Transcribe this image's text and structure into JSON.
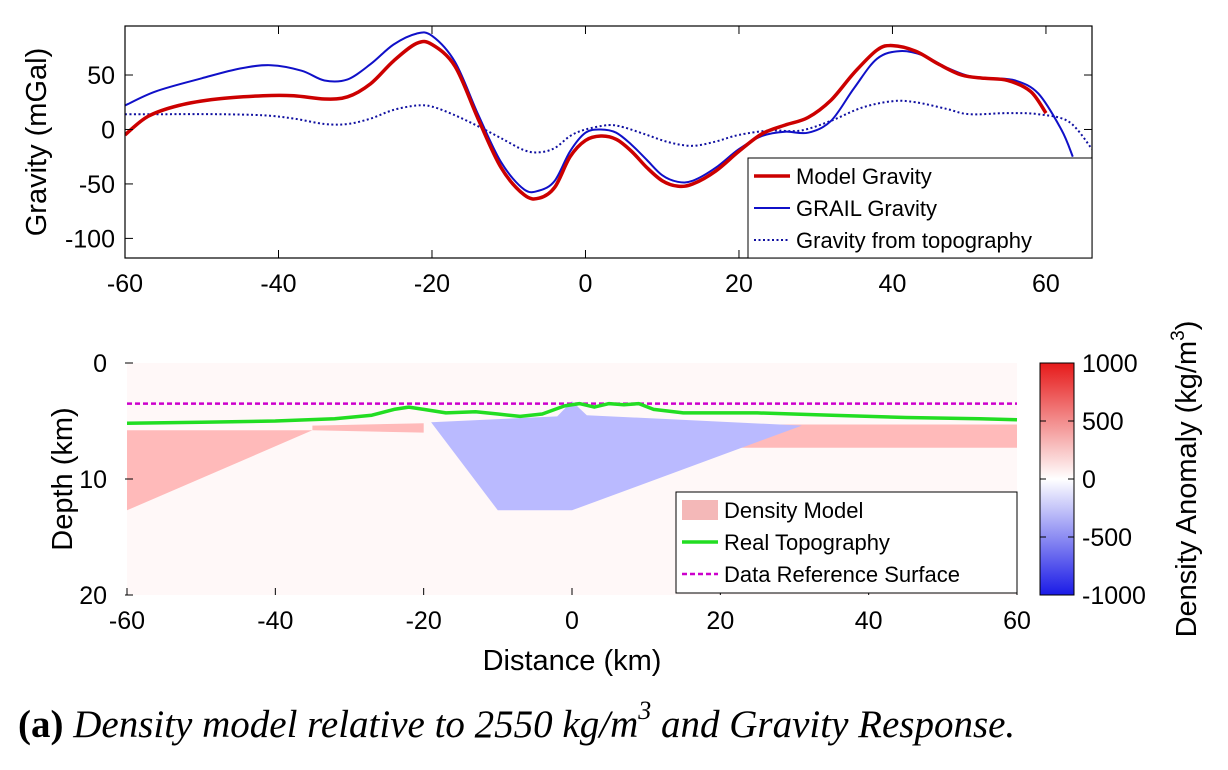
{
  "caption": {
    "label": "(a)",
    "text_before": "Density model relative to 2550 kg/m",
    "superscript": "3",
    "text_after": " and Gravity Response."
  },
  "chart_data": [
    {
      "type": "line",
      "ylabel": "Gravity (mGal)",
      "xlabel": "",
      "xlim": [
        -60,
        66
      ],
      "ylim": [
        -118,
        95
      ],
      "xticks": [
        -60,
        -40,
        -20,
        0,
        20,
        40,
        60
      ],
      "yticks": [
        -100,
        -50,
        0,
        50
      ],
      "legend": "bottom-right",
      "series": [
        {
          "name": "Model Gravity",
          "color": "#cc0000",
          "style": "solid",
          "points": [
            [
              -60,
              -5
            ],
            [
              -57,
              12
            ],
            [
              -53,
              22
            ],
            [
              -48,
              28
            ],
            [
              -42,
              31
            ],
            [
              -38,
              31
            ],
            [
              -34,
              28
            ],
            [
              -31,
              30
            ],
            [
              -28,
              42
            ],
            [
              -25,
              63
            ],
            [
              -22,
              79
            ],
            [
              -20,
              78
            ],
            [
              -17,
              58
            ],
            [
              -14,
              10
            ],
            [
              -11,
              -35
            ],
            [
              -8,
              -60
            ],
            [
              -6,
              -63
            ],
            [
              -4,
              -53
            ],
            [
              -2,
              -25
            ],
            [
              0,
              -10
            ],
            [
              2,
              -6
            ],
            [
              4,
              -9
            ],
            [
              6,
              -20
            ],
            [
              8,
              -35
            ],
            [
              10,
              -47
            ],
            [
              12,
              -52
            ],
            [
              14,
              -50
            ],
            [
              17,
              -38
            ],
            [
              20,
              -20
            ],
            [
              23,
              -4
            ],
            [
              26,
              4
            ],
            [
              29,
              11
            ],
            [
              32,
              27
            ],
            [
              35,
              52
            ],
            [
              38,
              73
            ],
            [
              40,
              77
            ],
            [
              43,
              72
            ],
            [
              46,
              60
            ],
            [
              49,
              50
            ],
            [
              52,
              47
            ],
            [
              55,
              45
            ],
            [
              58,
              35
            ],
            [
              60,
              15
            ]
          ]
        },
        {
          "name": "GRAIL Gravity",
          "color": "#1010c8",
          "style": "solid",
          "points": [
            [
              -60,
              22
            ],
            [
              -56,
              35
            ],
            [
              -50,
              47
            ],
            [
              -45,
              56
            ],
            [
              -41,
              59
            ],
            [
              -37,
              54
            ],
            [
              -34,
              45
            ],
            [
              -31,
              46
            ],
            [
              -28,
              60
            ],
            [
              -25,
              78
            ],
            [
              -22,
              88
            ],
            [
              -20,
              86
            ],
            [
              -17,
              62
            ],
            [
              -14,
              14
            ],
            [
              -11,
              -30
            ],
            [
              -8,
              -55
            ],
            [
              -6,
              -56
            ],
            [
              -4,
              -47
            ],
            [
              -2,
              -20
            ],
            [
              0,
              -3
            ],
            [
              2,
              0
            ],
            [
              4,
              -3
            ],
            [
              6,
              -14
            ],
            [
              8,
              -28
            ],
            [
              10,
              -42
            ],
            [
              12,
              -48
            ],
            [
              14,
              -47
            ],
            [
              17,
              -35
            ],
            [
              20,
              -18
            ],
            [
              23,
              -6
            ],
            [
              26,
              -2
            ],
            [
              29,
              -3
            ],
            [
              32,
              8
            ],
            [
              35,
              38
            ],
            [
              38,
              65
            ],
            [
              41,
              72
            ],
            [
              44,
              68
            ],
            [
              47,
              57
            ],
            [
              50,
              49
            ],
            [
              53,
              47
            ],
            [
              56,
              45
            ],
            [
              59,
              33
            ],
            [
              62,
              0
            ],
            [
              63.5,
              -25
            ]
          ]
        },
        {
          "name": "Gravity from topography",
          "color": "#1010a0",
          "style": "dotted",
          "points": [
            [
              -60,
              14
            ],
            [
              -55,
              14
            ],
            [
              -48,
              14
            ],
            [
              -42,
              13
            ],
            [
              -38,
              10
            ],
            [
              -34,
              5
            ],
            [
              -31,
              5
            ],
            [
              -28,
              10
            ],
            [
              -25,
              18
            ],
            [
              -22,
              22
            ],
            [
              -20,
              21
            ],
            [
              -17,
              13
            ],
            [
              -14,
              3
            ],
            [
              -11,
              -8
            ],
            [
              -8,
              -19
            ],
            [
              -6,
              -21
            ],
            [
              -4,
              -17
            ],
            [
              -2,
              -6
            ],
            [
              0,
              0
            ],
            [
              3,
              4
            ],
            [
              5,
              2
            ],
            [
              8,
              -5
            ],
            [
              11,
              -12
            ],
            [
              14,
              -15
            ],
            [
              17,
              -11
            ],
            [
              20,
              -5
            ],
            [
              24,
              -1
            ],
            [
              28,
              -1
            ],
            [
              32,
              8
            ],
            [
              36,
              20
            ],
            [
              40,
              26
            ],
            [
              43,
              25
            ],
            [
              47,
              19
            ],
            [
              50,
              14
            ],
            [
              55,
              15
            ],
            [
              59,
              14
            ],
            [
              63,
              7
            ],
            [
              66,
              -18
            ]
          ]
        }
      ]
    },
    {
      "type": "area",
      "xlabel": "Distance (km)",
      "ylabel": "Depth (km)",
      "colorbar_label": "Density Anomaly (kg/m",
      "colorbar_label_sup": "3",
      "colorbar_label_end": ")",
      "xlim": [
        -60,
        60
      ],
      "ylim": [
        20,
        0
      ],
      "xticks": [
        -60,
        -40,
        -20,
        0,
        20,
        40,
        60
      ],
      "yticks": [
        0,
        10,
        20
      ],
      "colorbar_ticks": [
        1000,
        500,
        0,
        -500,
        -1000
      ],
      "colorbar_range": [
        -1000,
        1000
      ],
      "legend": "bottom-right",
      "legend_entries": [
        {
          "name": "Density Model",
          "color": "#f4b8b8"
        },
        {
          "name": "Real Topography",
          "color": "#22dd22"
        },
        {
          "name": "Data Reference Surface",
          "color": "#cc00cc"
        }
      ],
      "background_density": 30,
      "polygons": [
        {
          "density": 300,
          "points": [
            [
              -60,
              5.8
            ],
            [
              -35,
              5.8
            ],
            [
              -60,
              12.7
            ]
          ]
        },
        {
          "density": 300,
          "points": [
            [
              -35,
              5.4
            ],
            [
              -20,
              5.2
            ],
            [
              -20,
              6.0
            ],
            [
              -35,
              5.8
            ]
          ]
        },
        {
          "density": 300,
          "points": [
            [
              22,
              5.3
            ],
            [
              60,
              5.3
            ],
            [
              60,
              7.3
            ],
            [
              22,
              7.3
            ]
          ]
        },
        {
          "density": -300,
          "points": [
            [
              -19,
              5.1
            ],
            [
              -2,
              4.6
            ],
            [
              0,
              3.3
            ],
            [
              2,
              4.5
            ],
            [
              28,
              5.3
            ],
            [
              31,
              5.4
            ],
            [
              0,
              12.7
            ],
            [
              -10,
              12.7
            ]
          ]
        }
      ],
      "topography": [
        [
          -60,
          5.2
        ],
        [
          -50,
          5.1
        ],
        [
          -40,
          5.0
        ],
        [
          -32,
          4.8
        ],
        [
          -27,
          4.5
        ],
        [
          -24,
          4.0
        ],
        [
          -22,
          3.8
        ],
        [
          -20,
          4.0
        ],
        [
          -17,
          4.3
        ],
        [
          -13,
          4.2
        ],
        [
          -10,
          4.4
        ],
        [
          -7,
          4.6
        ],
        [
          -4,
          4.4
        ],
        [
          -1,
          3.7
        ],
        [
          1,
          3.5
        ],
        [
          3,
          3.8
        ],
        [
          5,
          3.5
        ],
        [
          7,
          3.6
        ],
        [
          9,
          3.5
        ],
        [
          11,
          4.0
        ],
        [
          15,
          4.3
        ],
        [
          25,
          4.3
        ],
        [
          35,
          4.5
        ],
        [
          45,
          4.7
        ],
        [
          55,
          4.8
        ],
        [
          60,
          4.9
        ]
      ],
      "reference_surface_depth": 3.5
    }
  ]
}
